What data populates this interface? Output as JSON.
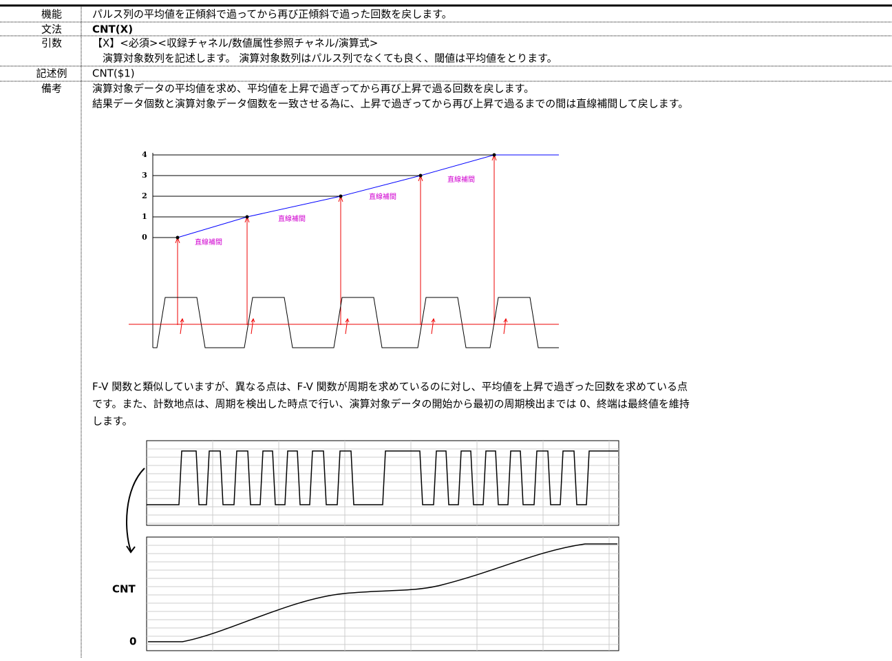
{
  "rows": [
    {
      "label": "機能",
      "lines": [
        "パルス列の平均値を正傾斜で過ってから再び正傾斜で過った回数を戻します。"
      ]
    },
    {
      "label": "文法",
      "lines": [
        "CNT(X)"
      ]
    },
    {
      "label": "引数",
      "lines": [
        "【X】<必須><収録チャネル/数値属性参照チャネル/演算式>",
        "　演算対象数列を記述します。 演算対象数列はパルス列でなくても良く、閾値は平均値をとります。"
      ]
    },
    {
      "label": "記述例",
      "lines": [
        "CNT($1)"
      ]
    },
    {
      "label": "備考",
      "lines": [
        "演算対象データの平均値を求め、平均値を上昇で過ぎってから再び上昇で過る回数を戻します。",
        "結果データ個数と演算対象データ個数を一致させる為に、上昇で過ぎってから再び上昇で過るまでの間は直線補間して戻します。"
      ]
    }
  ],
  "figure1": {
    "y_labels": [
      "0",
      "1",
      "2",
      "3",
      "4"
    ],
    "annotations": [
      "直線補間",
      "直線補間",
      "直線補間",
      "直線補間"
    ]
  },
  "paragraph": [
    "F-V 関数と類似していますが、異なる点は、F-V 関数が周期を求めているのに対し、平均値を上昇で過ぎった回数を求めている点",
    "です。また、計数地点は、周期を検出した時点で行い、演算対象データの開始から最初の周期検出までは 0、終端は最終値を維持",
    "します。"
  ],
  "figure2": {
    "label": "CNT",
    "zero": "0"
  }
}
